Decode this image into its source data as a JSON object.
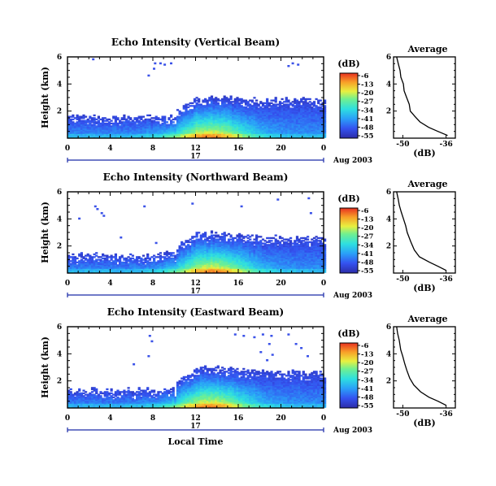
{
  "chart_data": [
    {
      "type": "heatmap",
      "title": "Echo Intensity (Vertical Beam)",
      "ylabel": "Height (km)",
      "xlim": [
        0,
        24
      ],
      "ylim": [
        0,
        6
      ],
      "x_ticks": [
        "0",
        "4",
        "8",
        "12",
        "16",
        "20",
        "0"
      ],
      "y_ticks": [
        "2",
        "4",
        "6"
      ],
      "day_label": "17",
      "date_label": "Aug 2003",
      "colorbar": {
        "unit": "(dB)",
        "ticks": [
          "-6",
          "-13",
          "-20",
          "-27",
          "-34",
          "-41",
          "-48",
          "-55"
        ],
        "range": [
          -55,
          -6
        ]
      },
      "field": {
        "base_top_km": 1.5,
        "layer_top_km": 2.8,
        "peak_hour": 13.3,
        "peak_top_km": 3.0,
        "sparse_high_echoes": [
          [
            8.1,
            5.6
          ],
          [
            8.6,
            5.6
          ],
          [
            9.0,
            5.5
          ],
          [
            9.6,
            5.6
          ],
          [
            8.0,
            5.2
          ],
          [
            7.5,
            4.7
          ],
          [
            21.0,
            5.6
          ],
          [
            20.6,
            5.4
          ],
          [
            21.5,
            5.5
          ],
          [
            2.3,
            5.9
          ]
        ]
      },
      "profile": {
        "title": "Average",
        "xlabel": "(dB)",
        "x_ticks": [
          "-50",
          "-36"
        ],
        "xlim": [
          -53,
          -33
        ],
        "y_ticks": [
          "2",
          "4",
          "6"
        ],
        "ylim": [
          0,
          6
        ],
        "points": [
          [
            -35.5,
            0.2
          ],
          [
            -38.5,
            0.5
          ],
          [
            -41.5,
            0.8
          ],
          [
            -44.5,
            1.2
          ],
          [
            -46.0,
            1.6
          ],
          [
            -47.5,
            2.0
          ],
          [
            -48.0,
            2.5
          ],
          [
            -48.5,
            3.0
          ],
          [
            -49.5,
            3.5
          ],
          [
            -50.0,
            4.0
          ],
          [
            -50.5,
            4.5
          ],
          [
            -51.0,
            5.0
          ],
          [
            -51.5,
            5.5
          ],
          [
            -52.0,
            6.0
          ]
        ]
      }
    },
    {
      "type": "heatmap",
      "title": "Echo Intensity (Northward Beam)",
      "ylabel": "Height (km)",
      "xlim": [
        0,
        24
      ],
      "ylim": [
        0,
        6
      ],
      "x_ticks": [
        "0",
        "4",
        "8",
        "12",
        "16",
        "20",
        "0"
      ],
      "y_ticks": [
        "2",
        "4",
        "6"
      ],
      "day_label": "17",
      "date_label": "Aug 2003",
      "colorbar": {
        "unit": "(dB)",
        "ticks": [
          "-6",
          "-13",
          "-20",
          "-27",
          "-34",
          "-41",
          "-48",
          "-55"
        ],
        "range": [
          -55,
          -6
        ]
      },
      "field": {
        "base_top_km": 1.2,
        "layer_top_km": 2.6,
        "peak_hour": 13.5,
        "peak_top_km": 2.9,
        "sparse_high_echoes": [
          [
            2.5,
            5.0
          ],
          [
            2.7,
            4.8
          ],
          [
            3.1,
            4.5
          ],
          [
            3.3,
            4.3
          ],
          [
            1.0,
            4.1
          ],
          [
            7.1,
            5.0
          ],
          [
            11.6,
            5.2
          ],
          [
            16.2,
            5.0
          ],
          [
            19.6,
            5.5
          ],
          [
            22.5,
            5.6
          ],
          [
            22.7,
            4.5
          ],
          [
            4.9,
            2.7
          ],
          [
            8.2,
            2.3
          ]
        ]
      },
      "profile": {
        "title": "Average",
        "xlabel": "(dB)",
        "x_ticks": [
          "-50",
          "-36"
        ],
        "xlim": [
          -53,
          -33
        ],
        "y_ticks": [
          "2",
          "4",
          "6"
        ],
        "ylim": [
          0,
          6
        ],
        "points": [
          [
            -36.0,
            0.2
          ],
          [
            -38.5,
            0.5
          ],
          [
            -41.5,
            0.8
          ],
          [
            -44.5,
            1.2
          ],
          [
            -46.5,
            1.7
          ],
          [
            -47.5,
            2.3
          ],
          [
            -48.5,
            3.0
          ],
          [
            -49.0,
            3.5
          ],
          [
            -50.0,
            4.0
          ],
          [
            -50.5,
            4.5
          ],
          [
            -51.0,
            5.0
          ],
          [
            -51.5,
            5.5
          ],
          [
            -52.0,
            6.0
          ]
        ]
      }
    },
    {
      "type": "heatmap",
      "title": "Echo Intensity (Eastward Beam)",
      "ylabel": "Height (km)",
      "xlim": [
        0,
        24
      ],
      "ylim": [
        0,
        6
      ],
      "x_ticks": [
        "0",
        "4",
        "8",
        "12",
        "16",
        "20",
        "0"
      ],
      "y_ticks": [
        "2",
        "4",
        "6"
      ],
      "day_label": "17",
      "date_label": "Aug 2003",
      "xlabel": "Local Time",
      "colorbar": {
        "unit": "(dB)",
        "ticks": [
          "-6",
          "-13",
          "-20",
          "-27",
          "-34",
          "-41",
          "-48",
          "-55"
        ],
        "range": [
          -55,
          -6
        ]
      },
      "field": {
        "base_top_km": 1.2,
        "layer_top_km": 2.6,
        "peak_hour": 13.3,
        "peak_top_km": 3.0,
        "sparse_high_echoes": [
          [
            7.6,
            5.4
          ],
          [
            7.8,
            5.0
          ],
          [
            7.5,
            3.9
          ],
          [
            6.1,
            3.3
          ],
          [
            15.6,
            5.5
          ],
          [
            16.4,
            5.4
          ],
          [
            17.4,
            5.3
          ],
          [
            18.2,
            5.5
          ],
          [
            19.0,
            5.4
          ],
          [
            20.6,
            5.5
          ],
          [
            18.8,
            4.8
          ],
          [
            18.0,
            4.2
          ],
          [
            19.1,
            4.0
          ],
          [
            18.6,
            3.6
          ],
          [
            21.3,
            4.8
          ],
          [
            22.4,
            3.9
          ],
          [
            21.8,
            4.5
          ]
        ]
      },
      "profile": {
        "title": "Average",
        "xlabel": "(dB)",
        "x_ticks": [
          "-50",
          "-36"
        ],
        "xlim": [
          -53,
          -33
        ],
        "y_ticks": [
          "2",
          "4",
          "6"
        ],
        "ylim": [
          0,
          6
        ],
        "points": [
          [
            -36.0,
            0.2
          ],
          [
            -38.5,
            0.5
          ],
          [
            -41.5,
            0.8
          ],
          [
            -44.5,
            1.2
          ],
          [
            -46.5,
            1.7
          ],
          [
            -47.5,
            2.2
          ],
          [
            -48.5,
            2.8
          ],
          [
            -49.5,
            3.3
          ],
          [
            -50.0,
            3.8
          ],
          [
            -50.5,
            4.3
          ],
          [
            -51.0,
            5.0
          ],
          [
            -51.5,
            5.5
          ],
          [
            -52.0,
            6.0
          ]
        ]
      }
    }
  ]
}
